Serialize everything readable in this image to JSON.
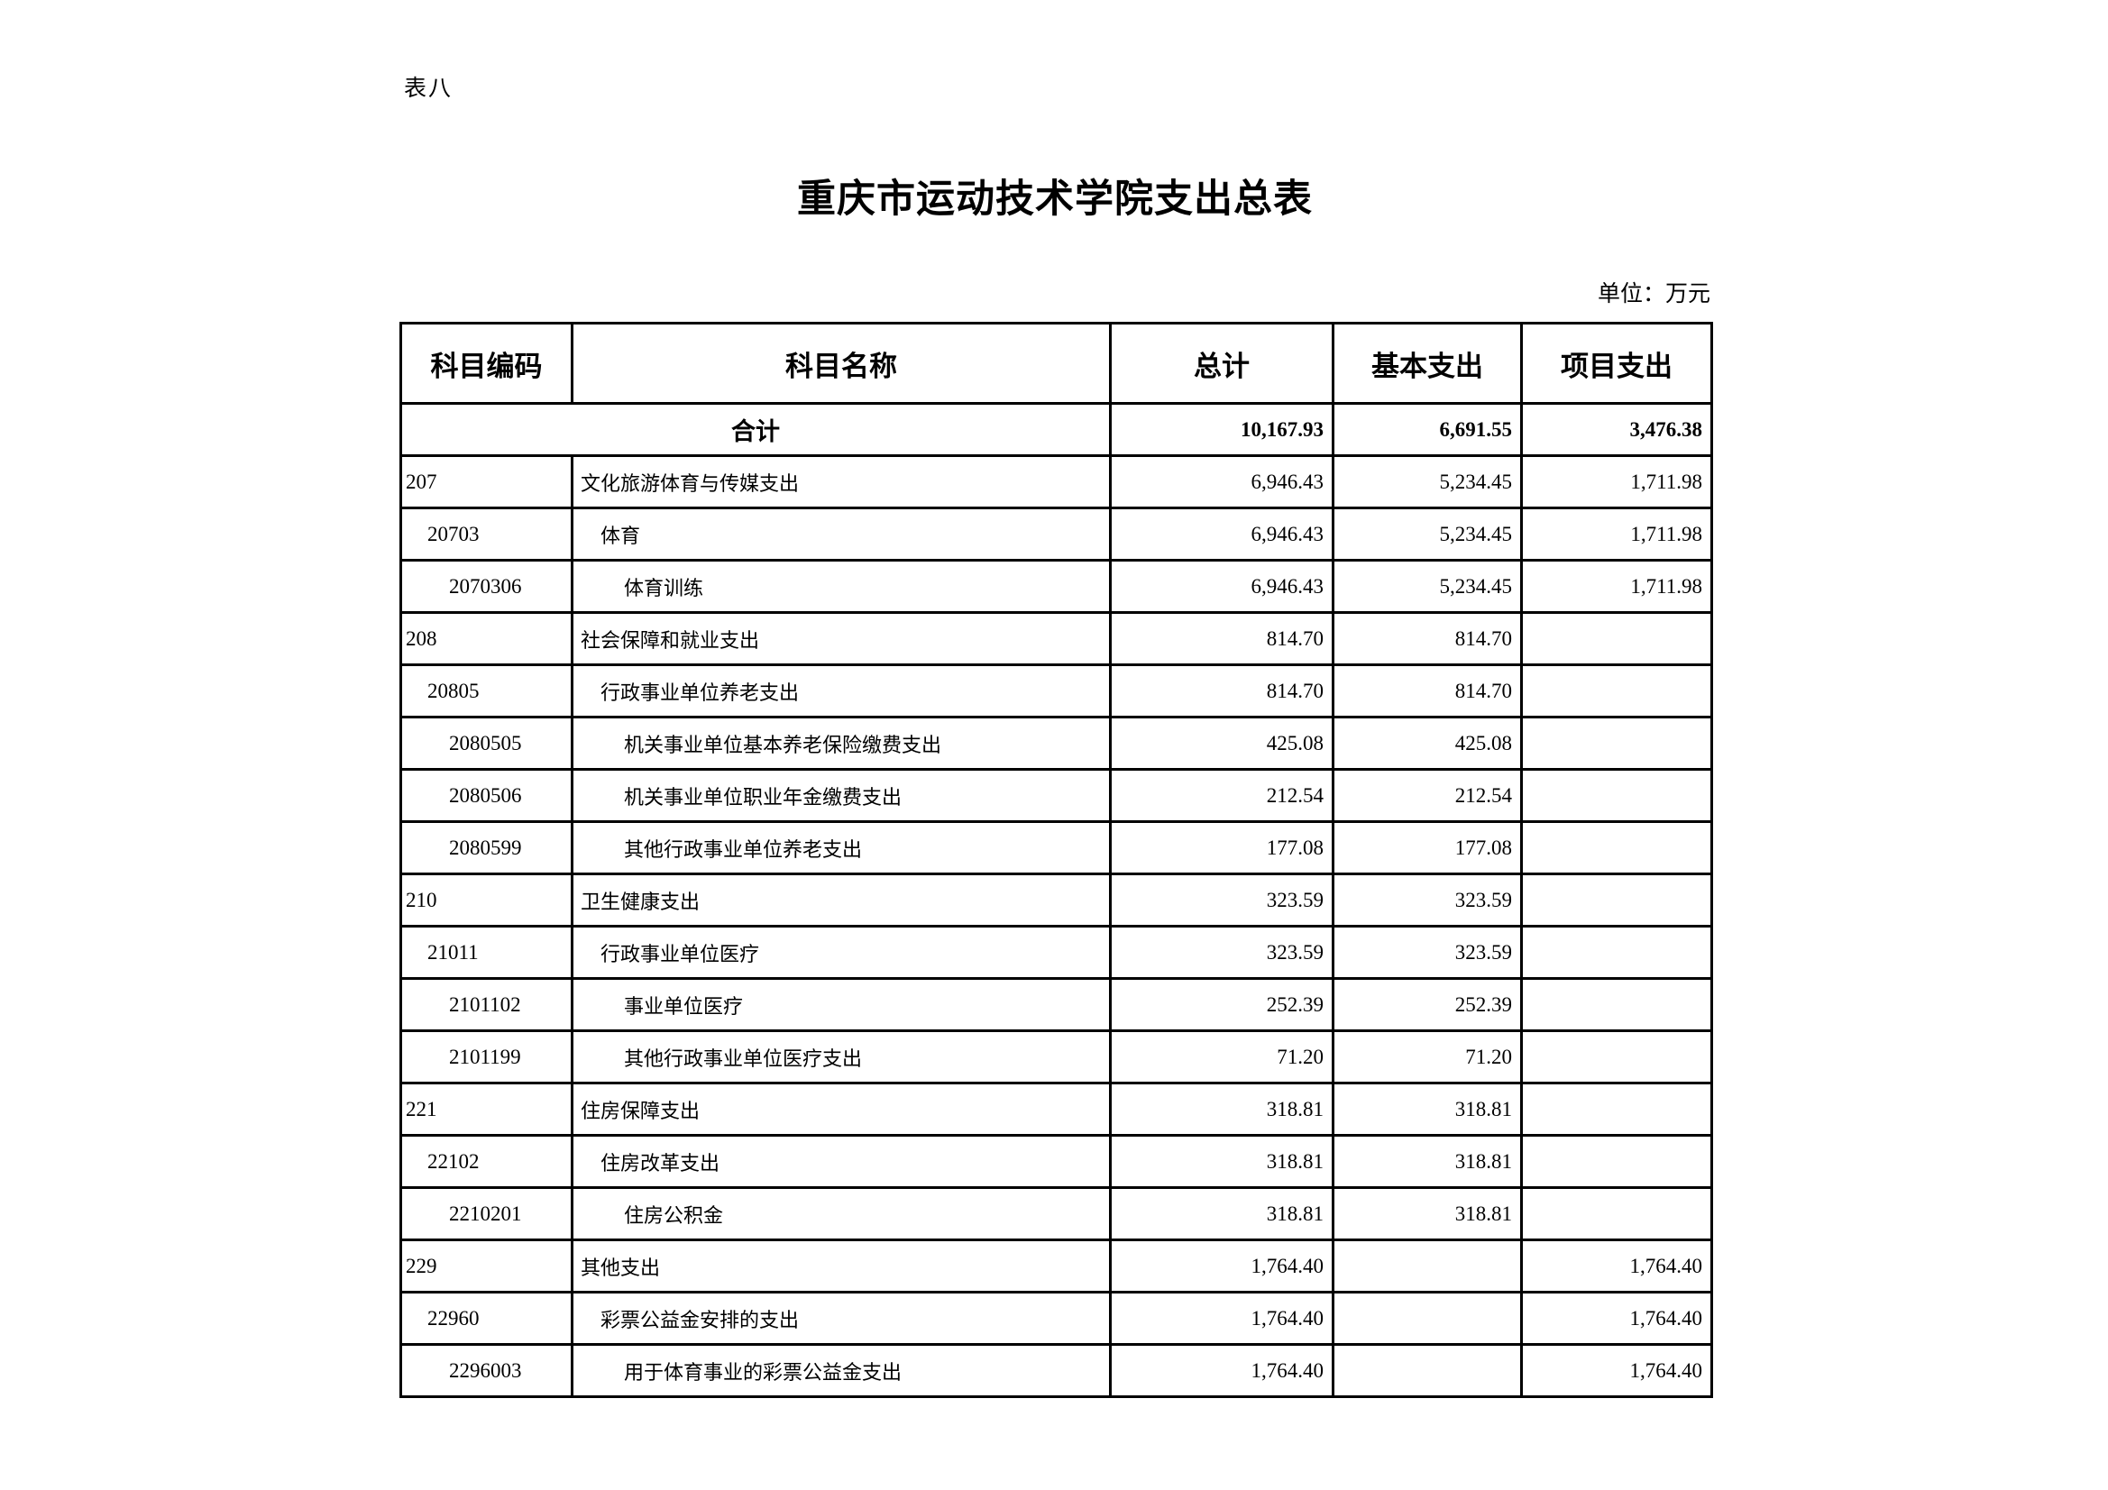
{
  "page": {
    "tag": "表八",
    "title": "重庆市运动技术学院支出总表",
    "unit_label": "单位：万元"
  },
  "table": {
    "columns": [
      "科目编码",
      "科目名称",
      "总计",
      "基本支出",
      "项目支出"
    ],
    "total_row": {
      "label": "合计",
      "total": "10,167.93",
      "basic": "6,691.55",
      "project": "3,476.38"
    },
    "rows": [
      {
        "code": "207",
        "name": "文化旅游体育与传媒支出",
        "level": 1,
        "total": "6,946.43",
        "basic": "5,234.45",
        "project": "1,711.98"
      },
      {
        "code": "20703",
        "name": "体育",
        "level": 2,
        "total": "6,946.43",
        "basic": "5,234.45",
        "project": "1,711.98"
      },
      {
        "code": "2070306",
        "name": "体育训练",
        "level": 3,
        "total": "6,946.43",
        "basic": "5,234.45",
        "project": "1,711.98"
      },
      {
        "code": "208",
        "name": "社会保障和就业支出",
        "level": 1,
        "total": "814.70",
        "basic": "814.70",
        "project": ""
      },
      {
        "code": "20805",
        "name": "行政事业单位养老支出",
        "level": 2,
        "total": "814.70",
        "basic": "814.70",
        "project": ""
      },
      {
        "code": "2080505",
        "name": "机关事业单位基本养老保险缴费支出",
        "level": 3,
        "total": "425.08",
        "basic": "425.08",
        "project": ""
      },
      {
        "code": "2080506",
        "name": "机关事业单位职业年金缴费支出",
        "level": 3,
        "total": "212.54",
        "basic": "212.54",
        "project": ""
      },
      {
        "code": "2080599",
        "name": "其他行政事业单位养老支出",
        "level": 3,
        "total": "177.08",
        "basic": "177.08",
        "project": ""
      },
      {
        "code": "210",
        "name": "卫生健康支出",
        "level": 1,
        "total": "323.59",
        "basic": "323.59",
        "project": ""
      },
      {
        "code": "21011",
        "name": "行政事业单位医疗",
        "level": 2,
        "total": "323.59",
        "basic": "323.59",
        "project": ""
      },
      {
        "code": "2101102",
        "name": "事业单位医疗",
        "level": 3,
        "total": "252.39",
        "basic": "252.39",
        "project": ""
      },
      {
        "code": "2101199",
        "name": "其他行政事业单位医疗支出",
        "level": 3,
        "total": "71.20",
        "basic": "71.20",
        "project": ""
      },
      {
        "code": "221",
        "name": "住房保障支出",
        "level": 1,
        "total": "318.81",
        "basic": "318.81",
        "project": ""
      },
      {
        "code": "22102",
        "name": "住房改革支出",
        "level": 2,
        "total": "318.81",
        "basic": "318.81",
        "project": ""
      },
      {
        "code": "2210201",
        "name": "住房公积金",
        "level": 3,
        "total": "318.81",
        "basic": "318.81",
        "project": ""
      },
      {
        "code": "229",
        "name": "其他支出",
        "level": 1,
        "total": "1,764.40",
        "basic": "",
        "project": "1,764.40"
      },
      {
        "code": "22960",
        "name": "彩票公益金安排的支出",
        "level": 2,
        "total": "1,764.40",
        "basic": "",
        "project": "1,764.40"
      },
      {
        "code": "2296003",
        "name": "用于体育事业的彩票公益金支出",
        "level": 3,
        "total": "1,764.40",
        "basic": "",
        "project": "1,764.40"
      }
    ]
  }
}
